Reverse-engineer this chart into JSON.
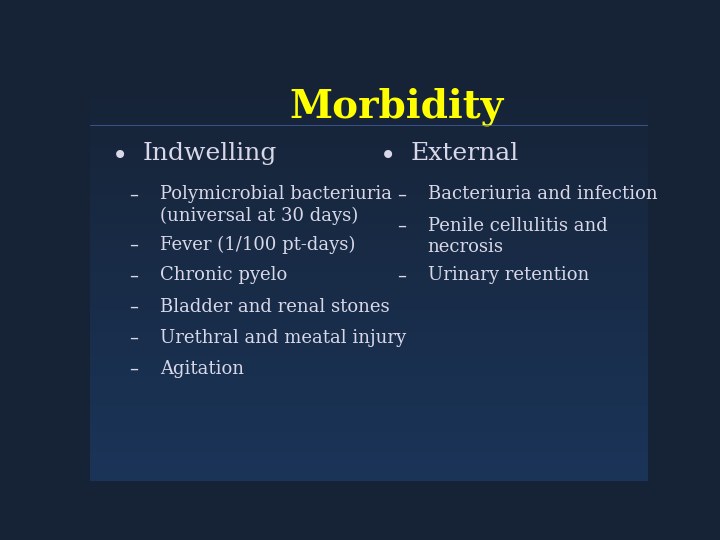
{
  "title": "Morbidity",
  "title_color": "#FFFF00",
  "title_fontsize": 28,
  "title_fontweight": "bold",
  "bg_color_top": "#162235",
  "bg_color_bottom": "#1e3a5f",
  "text_color": "#d8d8e8",
  "bullet1_header": "Indwelling",
  "bullet1_items": [
    "Polymicrobial bacteriuria\n(universal at 30 days)",
    "Fever (1/100 pt-days)",
    "Chronic pyelo",
    "Bladder and renal stones",
    "Urethral and meatal injury",
    "Agitation"
  ],
  "bullet2_header": "External",
  "bullet2_items": [
    "Bacteriuria and infection",
    "Penile cellulitis and\nnecrosis",
    "Urinary retention"
  ],
  "header_fontsize": 18,
  "sub_item_fontsize": 13
}
